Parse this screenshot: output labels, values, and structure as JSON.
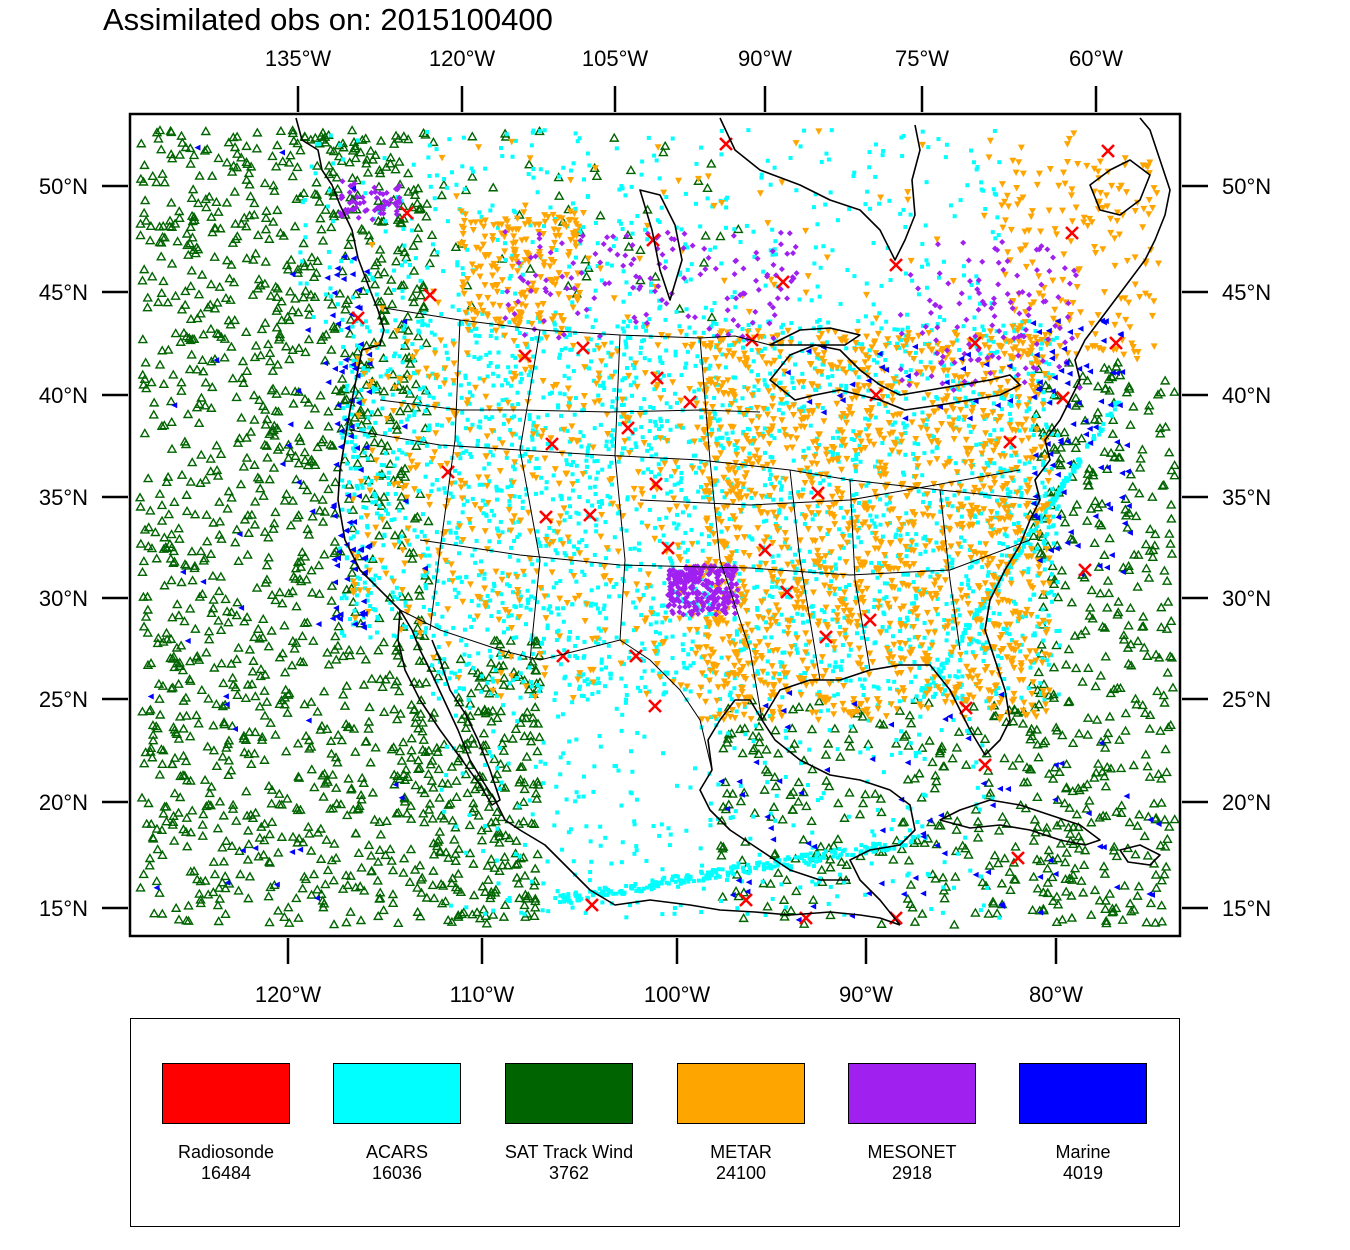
{
  "title": "Assimilated obs on: 2015100400",
  "top_ticks": [
    "135°W",
    "120°W",
    "105°W",
    "90°W",
    "75°W",
    "60°W"
  ],
  "bottom_ticks": [
    "120°W",
    "110°W",
    "100°W",
    "90°W",
    "80°W"
  ],
  "lat_ticks": [
    "50°N",
    "45°N",
    "40°N",
    "35°N",
    "30°N",
    "25°N",
    "20°N",
    "15°N"
  ],
  "legend": [
    {
      "name": "Radiosonde",
      "count": "16484",
      "color": "#ff0000"
    },
    {
      "name": "ACARS",
      "count": "16036",
      "color": "#00ffff"
    },
    {
      "name": "SAT Track Wind",
      "count": "3762",
      "color": "#006400"
    },
    {
      "name": "METAR",
      "count": "24100",
      "color": "#ffa500"
    },
    {
      "name": "MESONET",
      "count": "2918",
      "color": "#a020f0"
    },
    {
      "name": "Marine",
      "count": "4019",
      "color": "#0000ff"
    }
  ]
}
